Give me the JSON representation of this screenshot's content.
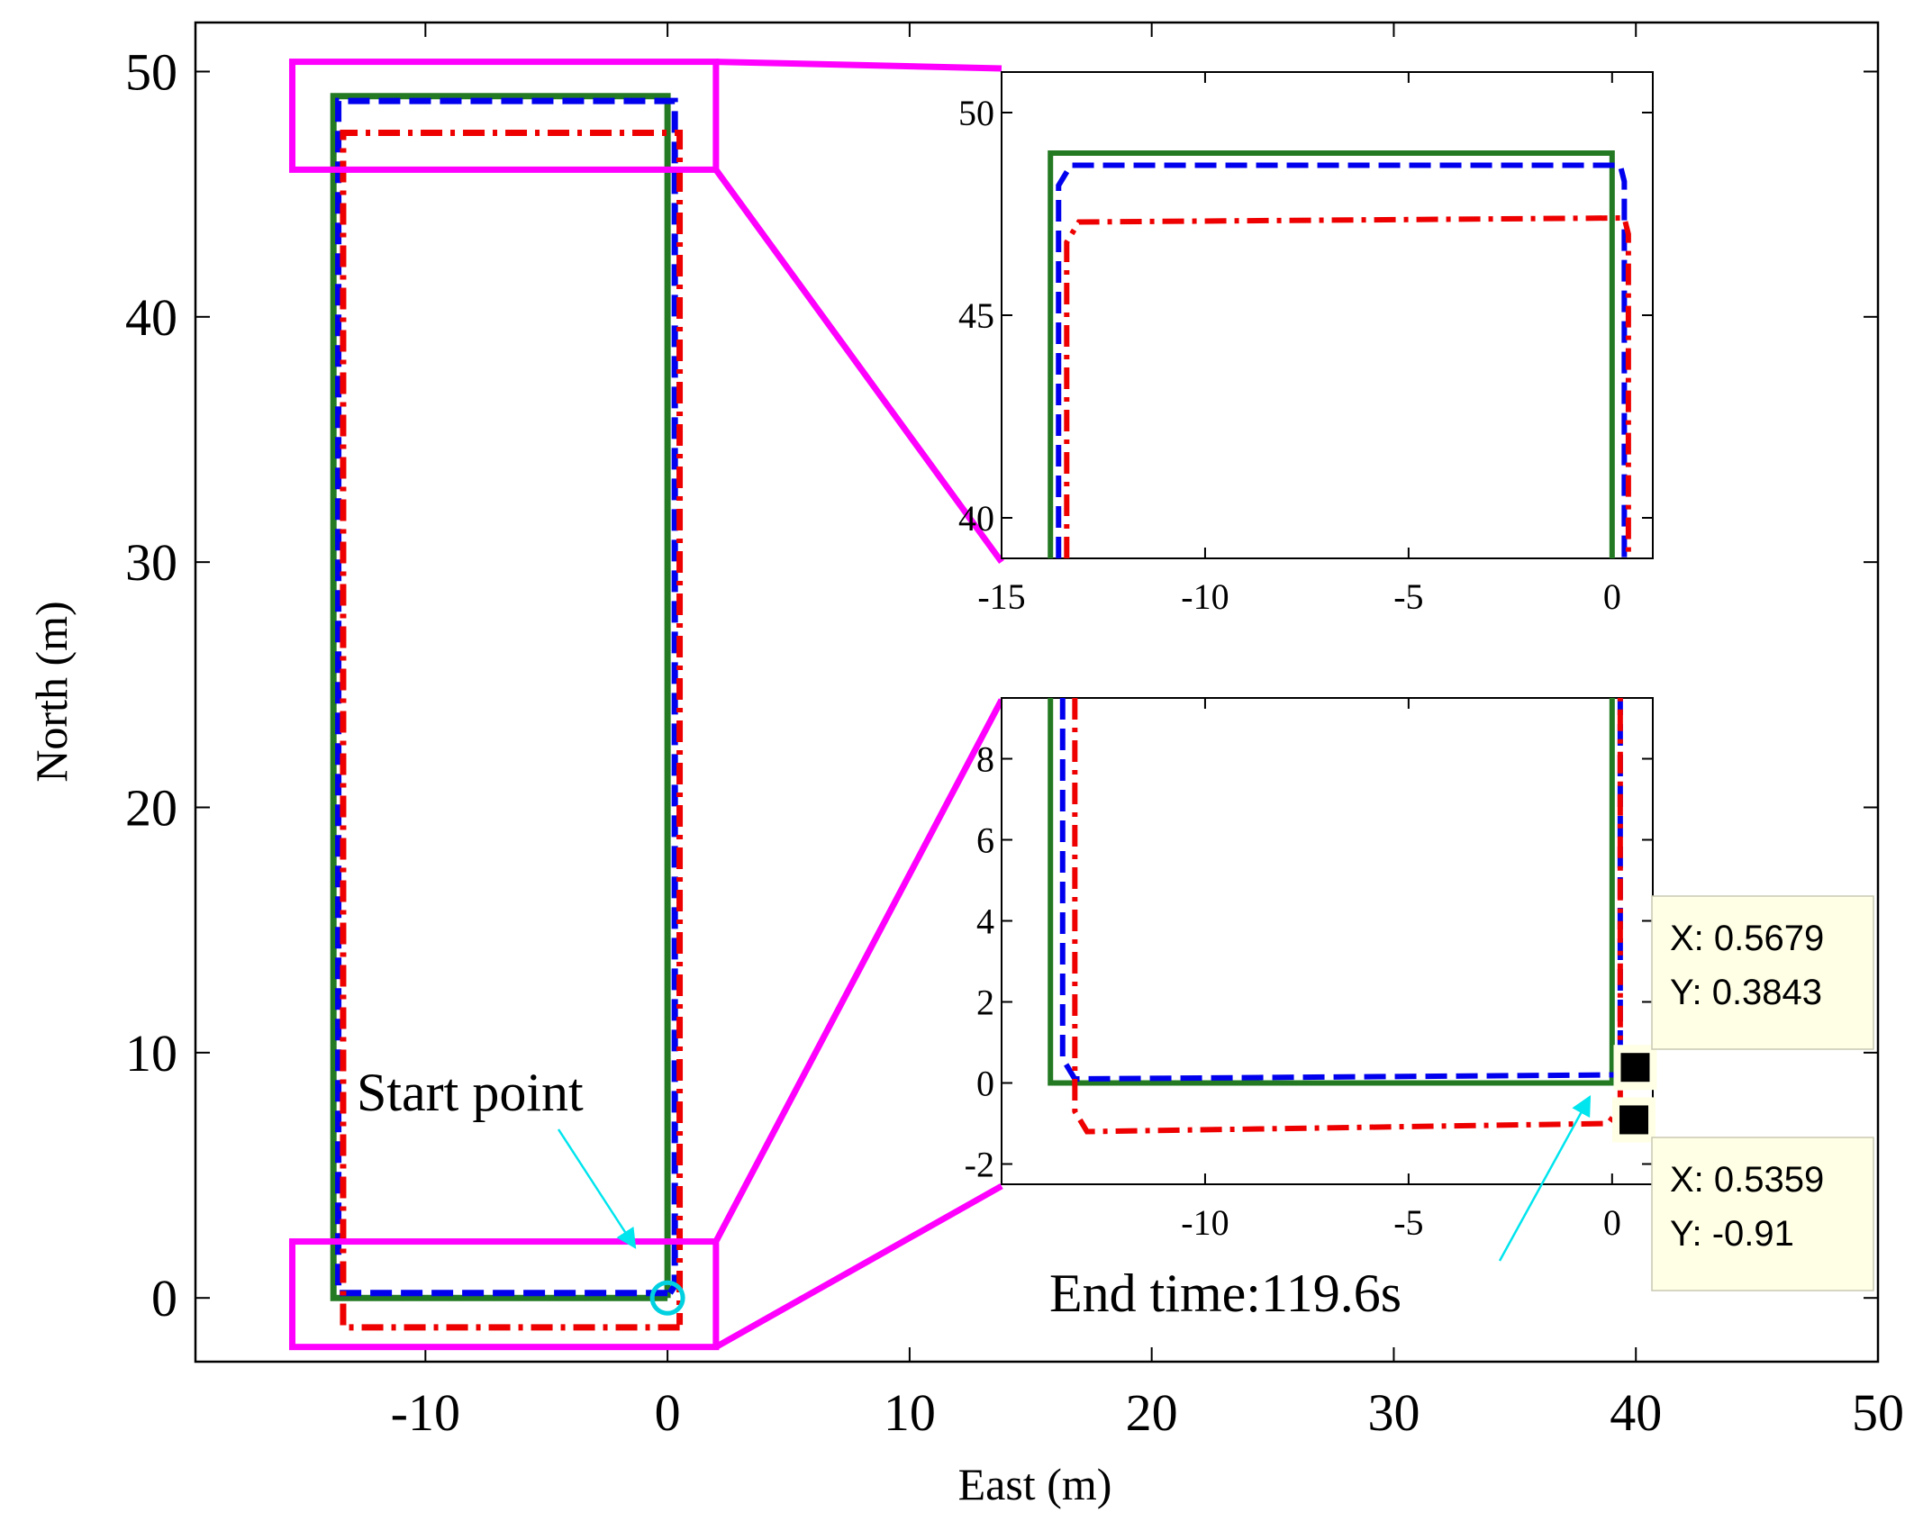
{
  "chart_data": [
    {
      "type": "line",
      "panel": "main",
      "xlabel": "East (m)",
      "ylabel": "North (m)",
      "xlim": [
        -19.5,
        50
      ],
      "ylim": [
        -2.6,
        52
      ],
      "xticks": [
        -10,
        0,
        10,
        20,
        30,
        40,
        50
      ],
      "yticks": [
        0,
        10,
        20,
        30,
        40,
        50
      ],
      "series": [
        {
          "color": "#237a23",
          "style": "solid",
          "x": [
            0,
            -13.8,
            -13.8,
            0,
            0
          ],
          "y": [
            0,
            0,
            49,
            49,
            0
          ]
        },
        {
          "color": "#0000ee",
          "style": "dashed",
          "x": [
            0,
            -13.6,
            -13.6,
            0.3,
            0.3,
            0.1
          ],
          "y": [
            0.2,
            0.2,
            48.8,
            48.8,
            0.5,
            0.2
          ]
        },
        {
          "color": "#ee0000",
          "style": "dash-dot",
          "x": [
            0.5,
            -13.4,
            -13.4,
            0.5,
            0.5
          ],
          "y": [
            -1.2,
            -1.2,
            47.5,
            47.5,
            -1.1
          ]
        }
      ],
      "annotations": {
        "start_label": "Start point",
        "start_point": [
          0,
          0
        ]
      },
      "zoom_boxes": [
        {
          "xlim": [
            -15.5,
            2
          ],
          "ylim": [
            46,
            50.4
          ]
        },
        {
          "xlim": [
            -15.5,
            2
          ],
          "ylim": [
            -2,
            2.3
          ]
        }
      ]
    },
    {
      "type": "line",
      "panel": "inset-top",
      "xlim": [
        -15,
        1
      ],
      "ylim": [
        39,
        51
      ],
      "xticks": [
        -15,
        -10,
        -5,
        0
      ],
      "yticks": [
        40,
        45,
        50
      ],
      "series": [
        {
          "color": "#237a23",
          "style": "solid",
          "x": [
            -13.8,
            -13.8,
            0,
            0
          ],
          "y": [
            39,
            49,
            49,
            39
          ]
        },
        {
          "color": "#0000ee",
          "style": "dashed",
          "x": [
            -13.6,
            -13.6,
            -13.3,
            0.2,
            0.3,
            0.3
          ],
          "y": [
            39,
            48.2,
            48.7,
            48.7,
            48.3,
            39
          ]
        },
        {
          "color": "#ee0000",
          "style": "dash-dot",
          "x": [
            -13.4,
            -13.4,
            -13.1,
            0.3,
            0.4,
            0.4
          ],
          "y": [
            39,
            46.8,
            47.3,
            47.4,
            47.0,
            39
          ]
        }
      ]
    },
    {
      "type": "line",
      "panel": "inset-bottom",
      "xlim": [
        -15,
        1
      ],
      "ylim": [
        -2.5,
        9.5
      ],
      "xticks": [
        -10,
        -5,
        0
      ],
      "yticks": [
        -2,
        0,
        2,
        4,
        6,
        8
      ],
      "series": [
        {
          "color": "#237a23",
          "style": "solid",
          "x": [
            -13.8,
            -13.8,
            0,
            0
          ],
          "y": [
            9.5,
            0,
            0,
            9.5
          ]
        },
        {
          "color": "#0000ee",
          "style": "dashed",
          "x": [
            -13.5,
            -13.5,
            -13.2,
            0.1,
            0.2,
            0.2
          ],
          "y": [
            9.5,
            0.6,
            0.1,
            0.2,
            0.5,
            9.5
          ]
        },
        {
          "color": "#ee0000",
          "style": "dash-dot",
          "x": [
            -13.2,
            -13.2,
            -12.9,
            -0.1,
            0.2,
            0.2
          ],
          "y": [
            9.5,
            -0.7,
            -1.2,
            -1.0,
            -0.6,
            9.5
          ]
        }
      ],
      "annotations": {
        "end_label": "End time:119.6s"
      },
      "data_tips": [
        {
          "point": [
            0.5679,
            0.3843
          ],
          "x_text": "X: 0.5679",
          "y_text": "Y: 0.3843"
        },
        {
          "point": [
            0.5359,
            -0.91
          ],
          "x_text": "X: 0.5359",
          "y_text": "Y: -0.91"
        }
      ]
    }
  ],
  "colors": {
    "zoom_box": "#ff00ff",
    "arrow": "#00e5ee",
    "start_marker": "#00d0e0",
    "tip_bg": "#ffffe6"
  }
}
